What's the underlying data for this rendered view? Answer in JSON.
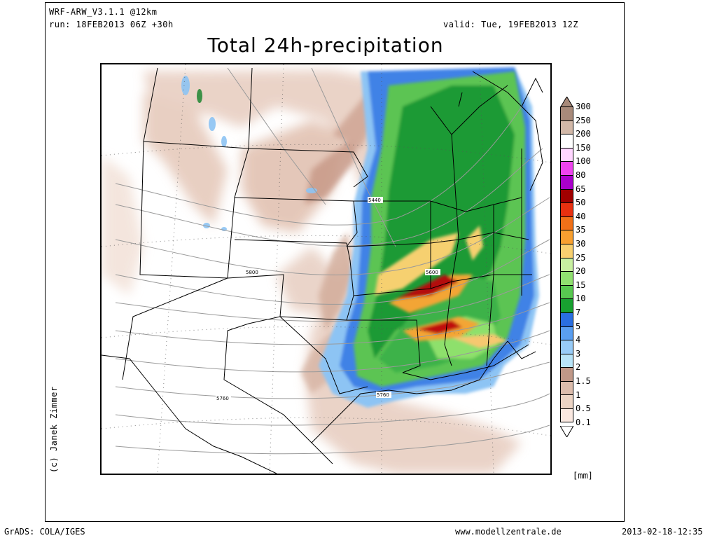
{
  "header": {
    "model": "WRF-ARW_V3.1.1 @12km",
    "run": "run: 18FEB2013 06Z +30h",
    "valid": "valid: Tue, 19FEB2013 12Z",
    "title": "Total 24h-precipitation"
  },
  "credit": "(c) Janek Zimmer",
  "contour_labels": [
    "5440",
    "5600",
    "5800",
    "5760",
    "5760"
  ],
  "legend": {
    "unit": "[mm]",
    "levels": [
      "300",
      "250",
      "200",
      "150",
      "100",
      "80",
      "65",
      "50",
      "40",
      "35",
      "30",
      "25",
      "20",
      "15",
      "10",
      "7",
      "5",
      "4",
      "3",
      "2",
      "1.5",
      "1",
      "0.5",
      "0.1"
    ],
    "colors": [
      "#a88a7a",
      "#d2b8a8",
      "#ffffff",
      "#ffd6ff",
      "#ee44ee",
      "#aa00cc",
      "#a00000",
      "#e83010",
      "#f07018",
      "#f8a030",
      "#f8d070",
      "#c8f0a0",
      "#90e070",
      "#58c850",
      "#18a030",
      "#2a6ee0",
      "#5a9ef0",
      "#98ccf8",
      "#b8e4f8",
      "#c09888",
      "#dcbcac",
      "#ecd4c4",
      "#fae8e0"
    ]
  },
  "footer": {
    "left": "GrADS: COLA/IGES",
    "center": "www.modellzentrale.de",
    "right": "2013-02-18-12:35"
  }
}
